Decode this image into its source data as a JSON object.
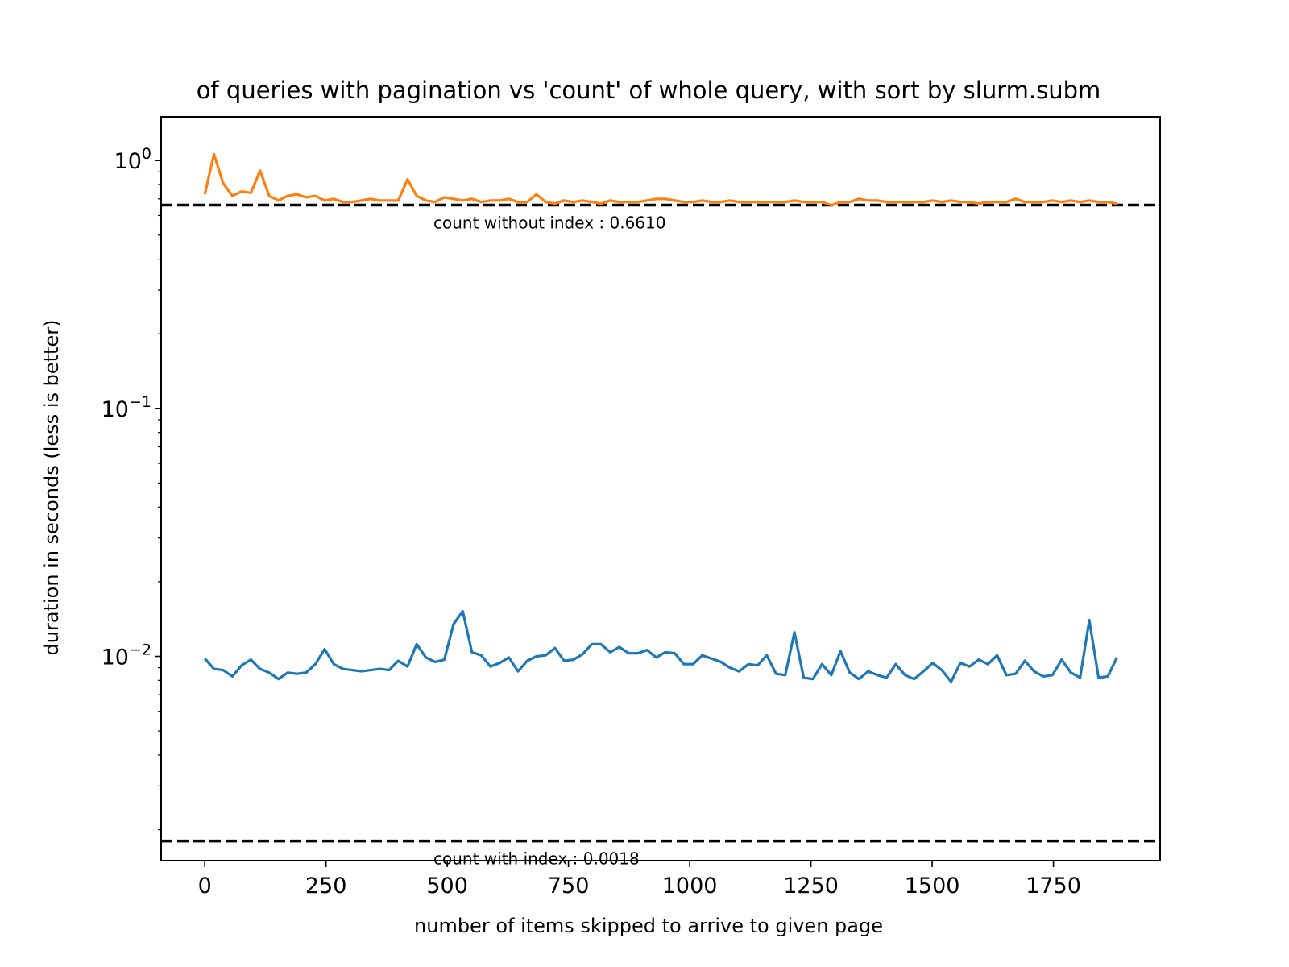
{
  "chart_data": {
    "type": "line",
    "title": "of queries with pagination vs 'count' of whole query, with sort by slurm.subm",
    "xlabel": "number of items skipped to arrive to given page",
    "ylabel": "duration in seconds (less is better)",
    "xscale": "linear",
    "yscale": "log",
    "xlim": [
      -90,
      1970
    ],
    "ylim": [
      0.0015,
      1.5
    ],
    "xticks": [
      0,
      250,
      500,
      750,
      1000,
      1250,
      1500,
      1750
    ],
    "xtick_labels": [
      "0",
      "250",
      "500",
      "750",
      "1000",
      "1250",
      "1500",
      "1750"
    ],
    "yticks": [
      1,
      0.1,
      0.01
    ],
    "ytick_labels": [
      {
        "base": "10",
        "exp": "0"
      },
      {
        "base": "10",
        "exp": "−1"
      },
      {
        "base": "10",
        "exp": "−2"
      }
    ],
    "grid": false,
    "legend": false,
    "x": [
      0,
      19,
      38,
      57,
      76,
      95,
      114,
      133,
      152,
      171,
      190,
      209,
      228,
      247,
      266,
      285,
      304,
      323,
      342,
      361,
      380,
      399,
      418,
      437,
      456,
      475,
      494,
      513,
      532,
      551,
      570,
      589,
      608,
      627,
      646,
      665,
      684,
      703,
      722,
      741,
      760,
      779,
      798,
      817,
      836,
      855,
      874,
      893,
      912,
      931,
      950,
      969,
      988,
      1007,
      1026,
      1045,
      1064,
      1083,
      1102,
      1121,
      1140,
      1159,
      1178,
      1197,
      1216,
      1235,
      1254,
      1273,
      1292,
      1311,
      1330,
      1349,
      1368,
      1387,
      1406,
      1425,
      1444,
      1463,
      1482,
      1501,
      1520,
      1539,
      1558,
      1577,
      1596,
      1615,
      1634,
      1653,
      1672,
      1691,
      1710,
      1729,
      1748,
      1767,
      1786,
      1805,
      1824,
      1843,
      1862,
      1881
    ],
    "series": [
      {
        "color": "#1f77b4",
        "values": [
          0.0098,
          0.0089,
          0.0088,
          0.0083,
          0.0092,
          0.0097,
          0.0089,
          0.0086,
          0.0081,
          0.0086,
          0.0085,
          0.0086,
          0.0093,
          0.0107,
          0.0093,
          0.0089,
          0.0088,
          0.0087,
          0.0088,
          0.0089,
          0.0088,
          0.0096,
          0.0091,
          0.0112,
          0.0099,
          0.0095,
          0.0097,
          0.0135,
          0.0152,
          0.0104,
          0.0101,
          0.0091,
          0.0094,
          0.0099,
          0.0087,
          0.0096,
          0.01,
          0.0101,
          0.0108,
          0.0096,
          0.0097,
          0.0102,
          0.0112,
          0.0112,
          0.0104,
          0.0109,
          0.0103,
          0.0103,
          0.0106,
          0.0099,
          0.0104,
          0.0103,
          0.0093,
          0.0093,
          0.0101,
          0.0098,
          0.0095,
          0.009,
          0.0087,
          0.0093,
          0.0092,
          0.0101,
          0.0085,
          0.0084,
          0.0125,
          0.0082,
          0.0081,
          0.0093,
          0.0084,
          0.0105,
          0.0086,
          0.0081,
          0.0087,
          0.0084,
          0.0082,
          0.0093,
          0.0084,
          0.0081,
          0.0087,
          0.0094,
          0.0088,
          0.0079,
          0.0094,
          0.0091,
          0.0097,
          0.0093,
          0.0101,
          0.0084,
          0.0085,
          0.0096,
          0.0087,
          0.0083,
          0.0084,
          0.0097,
          0.0086,
          0.0082,
          0.014,
          0.0082,
          0.0083,
          0.0099
        ]
      },
      {
        "color": "#ff7f0e",
        "values": [
          0.73,
          1.06,
          0.81,
          0.72,
          0.75,
          0.74,
          0.91,
          0.72,
          0.69,
          0.72,
          0.73,
          0.71,
          0.72,
          0.69,
          0.7,
          0.68,
          0.68,
          0.69,
          0.7,
          0.69,
          0.69,
          0.69,
          0.84,
          0.72,
          0.69,
          0.68,
          0.71,
          0.7,
          0.69,
          0.7,
          0.68,
          0.69,
          0.69,
          0.7,
          0.68,
          0.68,
          0.73,
          0.68,
          0.67,
          0.69,
          0.68,
          0.69,
          0.68,
          0.67,
          0.69,
          0.68,
          0.68,
          0.68,
          0.69,
          0.7,
          0.7,
          0.69,
          0.68,
          0.68,
          0.69,
          0.68,
          0.68,
          0.69,
          0.68,
          0.68,
          0.68,
          0.68,
          0.68,
          0.68,
          0.69,
          0.68,
          0.68,
          0.68,
          0.66,
          0.68,
          0.68,
          0.7,
          0.69,
          0.69,
          0.68,
          0.68,
          0.68,
          0.68,
          0.68,
          0.69,
          0.68,
          0.69,
          0.68,
          0.68,
          0.67,
          0.68,
          0.68,
          0.68,
          0.7,
          0.68,
          0.68,
          0.68,
          0.69,
          0.68,
          0.69,
          0.68,
          0.69,
          0.68,
          0.68,
          0.67
        ]
      }
    ],
    "reference_lines": [
      {
        "y": 0.661,
        "style": "dashed",
        "color": "#000000",
        "label": "count without index : 0.6610"
      },
      {
        "y": 0.0018,
        "style": "dashed",
        "color": "#000000",
        "label": "count with index : 0.0018"
      }
    ]
  }
}
